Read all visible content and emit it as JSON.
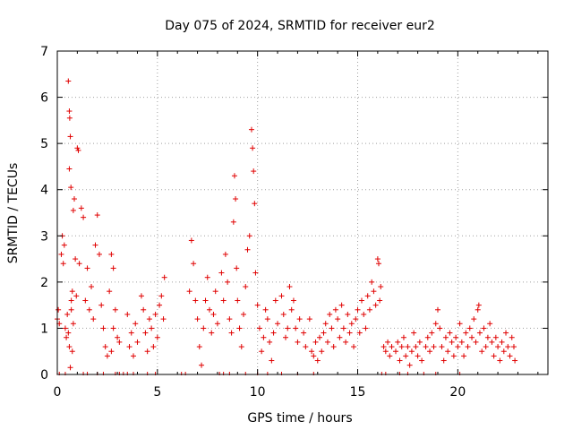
{
  "chart_data": {
    "type": "scatter",
    "title": "Day 075 of 2024, SRMTID for receiver eur2",
    "xlabel": "GPS time / hours",
    "ylabel": "SRMTID / TECUs",
    "xlim": [
      0,
      24.5
    ],
    "ylim": [
      0,
      7
    ],
    "xticks": [
      0,
      5,
      10,
      15,
      20
    ],
    "yticks": [
      0,
      1,
      2,
      3,
      4,
      5,
      6,
      7
    ],
    "grid": true,
    "marker": "plus",
    "color": "#e00000",
    "series": [
      {
        "name": "SRMTID",
        "points": [
          [
            0.0,
            1.2
          ],
          [
            0.05,
            1.4
          ],
          [
            0.1,
            1.1
          ],
          [
            0.2,
            2.6
          ],
          [
            0.25,
            3.0
          ],
          [
            0.3,
            2.4
          ],
          [
            0.35,
            2.8
          ],
          [
            0.4,
            1.0
          ],
          [
            0.45,
            0.8
          ],
          [
            0.5,
            1.3
          ],
          [
            0.55,
            6.35
          ],
          [
            0.6,
            5.7
          ],
          [
            0.62,
            5.55
          ],
          [
            0.65,
            5.15
          ],
          [
            0.6,
            4.45
          ],
          [
            0.68,
            4.05
          ],
          [
            0.7,
            1.6
          ],
          [
            0.75,
            1.8
          ],
          [
            0.8,
            3.55
          ],
          [
            0.85,
            3.8
          ],
          [
            0.9,
            2.5
          ],
          [
            0.95,
            1.7
          ],
          [
            1.0,
            4.9
          ],
          [
            1.05,
            4.85
          ],
          [
            1.1,
            2.4
          ],
          [
            1.2,
            3.6
          ],
          [
            1.3,
            3.4
          ],
          [
            1.4,
            1.6
          ],
          [
            1.5,
            2.3
          ],
          [
            0.55,
            0.9
          ],
          [
            0.6,
            0.6
          ],
          [
            0.65,
            0.15
          ],
          [
            0.7,
            1.4
          ],
          [
            0.75,
            0.5
          ],
          [
            0.8,
            1.1
          ],
          [
            1.6,
            1.4
          ],
          [
            1.7,
            1.9
          ],
          [
            1.8,
            1.2
          ],
          [
            1.9,
            2.8
          ],
          [
            2.0,
            3.45
          ],
          [
            2.1,
            2.6
          ],
          [
            2.2,
            1.5
          ],
          [
            2.3,
            1.0
          ],
          [
            2.4,
            0.6
          ],
          [
            2.5,
            0.4
          ],
          [
            2.6,
            1.8
          ],
          [
            2.7,
            2.6
          ],
          [
            2.8,
            2.3
          ],
          [
            2.9,
            1.4
          ],
          [
            3.0,
            0.8
          ],
          [
            2.7,
            0.5
          ],
          [
            2.8,
            1.0
          ],
          [
            3.1,
            0.7
          ],
          [
            3.5,
            1.3
          ],
          [
            3.6,
            0.6
          ],
          [
            3.7,
            0.9
          ],
          [
            3.8,
            0.4
          ],
          [
            3.9,
            1.1
          ],
          [
            4.0,
            0.7
          ],
          [
            4.2,
            1.7
          ],
          [
            4.3,
            1.4
          ],
          [
            4.4,
            0.9
          ],
          [
            4.5,
            0.5
          ],
          [
            4.6,
            1.2
          ],
          [
            4.7,
            1.0
          ],
          [
            4.8,
            0.6
          ],
          [
            4.9,
            1.3
          ],
          [
            5.0,
            0.8
          ],
          [
            5.1,
            1.5
          ],
          [
            5.2,
            1.7
          ],
          [
            5.3,
            1.2
          ],
          [
            5.35,
            2.1
          ],
          [
            6.6,
            1.8
          ],
          [
            6.7,
            2.9
          ],
          [
            6.8,
            2.4
          ],
          [
            6.9,
            1.6
          ],
          [
            7.0,
            1.2
          ],
          [
            7.1,
            0.6
          ],
          [
            7.2,
            0.2
          ],
          [
            7.3,
            1.0
          ],
          [
            7.4,
            1.6
          ],
          [
            7.5,
            2.1
          ],
          [
            7.6,
            1.4
          ],
          [
            7.7,
            0.9
          ],
          [
            7.8,
            1.3
          ],
          [
            7.9,
            1.8
          ],
          [
            8.0,
            1.1
          ],
          [
            8.2,
            2.2
          ],
          [
            8.3,
            1.6
          ],
          [
            8.4,
            2.6
          ],
          [
            8.5,
            2.0
          ],
          [
            8.6,
            1.2
          ],
          [
            8.7,
            0.9
          ],
          [
            8.8,
            3.3
          ],
          [
            8.85,
            4.3
          ],
          [
            8.9,
            3.8
          ],
          [
            8.95,
            2.3
          ],
          [
            9.0,
            1.6
          ],
          [
            9.1,
            1.0
          ],
          [
            9.2,
            0.6
          ],
          [
            9.3,
            1.3
          ],
          [
            9.4,
            1.9
          ],
          [
            9.5,
            2.7
          ],
          [
            9.6,
            3.0
          ],
          [
            9.7,
            5.3
          ],
          [
            9.75,
            4.9
          ],
          [
            9.8,
            4.4
          ],
          [
            9.85,
            3.7
          ],
          [
            9.9,
            2.2
          ],
          [
            10.0,
            1.5
          ],
          [
            10.1,
            1.0
          ],
          [
            10.2,
            0.5
          ],
          [
            10.3,
            0.8
          ],
          [
            10.4,
            1.4
          ],
          [
            10.5,
            1.2
          ],
          [
            10.6,
            0.7
          ],
          [
            10.7,
            0.3
          ],
          [
            10.8,
            0.9
          ],
          [
            10.9,
            1.6
          ],
          [
            11.0,
            1.1
          ],
          [
            11.2,
            1.7
          ],
          [
            11.3,
            1.3
          ],
          [
            11.4,
            0.8
          ],
          [
            11.5,
            1.0
          ],
          [
            11.6,
            1.9
          ],
          [
            11.7,
            1.4
          ],
          [
            11.8,
            1.6
          ],
          [
            11.9,
            1.0
          ],
          [
            12.0,
            0.7
          ],
          [
            12.1,
            1.2
          ],
          [
            12.3,
            0.9
          ],
          [
            12.4,
            0.6
          ],
          [
            12.6,
            1.2
          ],
          [
            12.7,
            0.5
          ],
          [
            12.8,
            0.4
          ],
          [
            12.9,
            0.7
          ],
          [
            13.0,
            0.3
          ],
          [
            13.1,
            0.8
          ],
          [
            13.2,
            0.5
          ],
          [
            13.3,
            0.9
          ],
          [
            13.4,
            1.1
          ],
          [
            13.5,
            0.7
          ],
          [
            13.6,
            1.3
          ],
          [
            13.7,
            1.0
          ],
          [
            13.8,
            0.6
          ],
          [
            13.9,
            1.4
          ],
          [
            14.0,
            1.2
          ],
          [
            14.1,
            0.8
          ],
          [
            14.2,
            1.5
          ],
          [
            14.3,
            1.0
          ],
          [
            14.4,
            0.7
          ],
          [
            14.5,
            1.3
          ],
          [
            14.6,
            0.9
          ],
          [
            14.7,
            1.1
          ],
          [
            14.8,
            0.6
          ],
          [
            14.9,
            1.2
          ],
          [
            15.0,
            1.4
          ],
          [
            15.1,
            0.9
          ],
          [
            15.2,
            1.6
          ],
          [
            15.3,
            1.3
          ],
          [
            15.4,
            1.0
          ],
          [
            15.5,
            1.7
          ],
          [
            15.6,
            1.4
          ],
          [
            15.7,
            2.0
          ],
          [
            15.8,
            1.8
          ],
          [
            15.9,
            1.5
          ],
          [
            16.0,
            2.5
          ],
          [
            16.05,
            2.4
          ],
          [
            16.1,
            1.6
          ],
          [
            16.15,
            1.9
          ],
          [
            16.3,
            0.6
          ],
          [
            16.4,
            0.5
          ],
          [
            16.5,
            0.7
          ],
          [
            16.6,
            0.4
          ],
          [
            16.7,
            0.6
          ],
          [
            16.9,
            0.5
          ],
          [
            17.0,
            0.7
          ],
          [
            17.1,
            0.3
          ],
          [
            17.2,
            0.6
          ],
          [
            17.3,
            0.8
          ],
          [
            17.4,
            0.4
          ],
          [
            17.5,
            0.6
          ],
          [
            17.6,
            0.2
          ],
          [
            17.7,
            0.5
          ],
          [
            17.8,
            0.9
          ],
          [
            17.9,
            0.6
          ],
          [
            18.0,
            0.4
          ],
          [
            18.1,
            0.7
          ],
          [
            18.2,
            0.3
          ],
          [
            18.4,
            0.6
          ],
          [
            18.5,
            0.8
          ],
          [
            18.6,
            0.5
          ],
          [
            18.7,
            0.9
          ],
          [
            18.8,
            0.6
          ],
          [
            18.9,
            1.1
          ],
          [
            19.0,
            1.4
          ],
          [
            19.1,
            1.0
          ],
          [
            19.2,
            0.6
          ],
          [
            19.3,
            0.3
          ],
          [
            19.4,
            0.8
          ],
          [
            19.5,
            0.5
          ],
          [
            19.6,
            0.9
          ],
          [
            19.7,
            0.7
          ],
          [
            19.8,
            0.4
          ],
          [
            19.9,
            0.8
          ],
          [
            20.0,
            0.6
          ],
          [
            20.1,
            1.1
          ],
          [
            20.2,
            0.7
          ],
          [
            20.3,
            0.4
          ],
          [
            20.4,
            0.9
          ],
          [
            20.5,
            0.6
          ],
          [
            20.6,
            1.0
          ],
          [
            20.7,
            0.8
          ],
          [
            20.8,
            1.2
          ],
          [
            20.9,
            0.7
          ],
          [
            21.0,
            1.4
          ],
          [
            21.05,
            1.5
          ],
          [
            21.1,
            0.9
          ],
          [
            21.2,
            0.5
          ],
          [
            21.3,
            1.0
          ],
          [
            21.4,
            0.6
          ],
          [
            21.5,
            0.8
          ],
          [
            21.6,
            1.1
          ],
          [
            21.7,
            0.7
          ],
          [
            21.8,
            0.4
          ],
          [
            21.9,
            0.8
          ],
          [
            22.0,
            0.6
          ],
          [
            22.1,
            0.3
          ],
          [
            22.2,
            0.7
          ],
          [
            22.3,
            0.5
          ],
          [
            22.4,
            0.9
          ],
          [
            22.5,
            0.6
          ],
          [
            22.6,
            0.4
          ],
          [
            22.7,
            0.8
          ],
          [
            22.8,
            0.6
          ],
          [
            22.85,
            0.3
          ]
        ]
      }
    ],
    "zero_points_x": [
      0.1,
      0.4,
      1.3,
      1.5,
      2.0,
      2.3,
      2.9,
      3.1,
      3.3,
      3.5,
      3.8,
      4.5,
      4.9,
      6.2,
      6.4,
      8.1,
      8.3,
      8.6,
      9.4,
      10.0,
      10.5,
      11.2,
      12.0,
      12.8,
      16.2,
      16.4,
      17.1,
      17.5,
      18.3,
      18.9,
      20.1
    ]
  }
}
